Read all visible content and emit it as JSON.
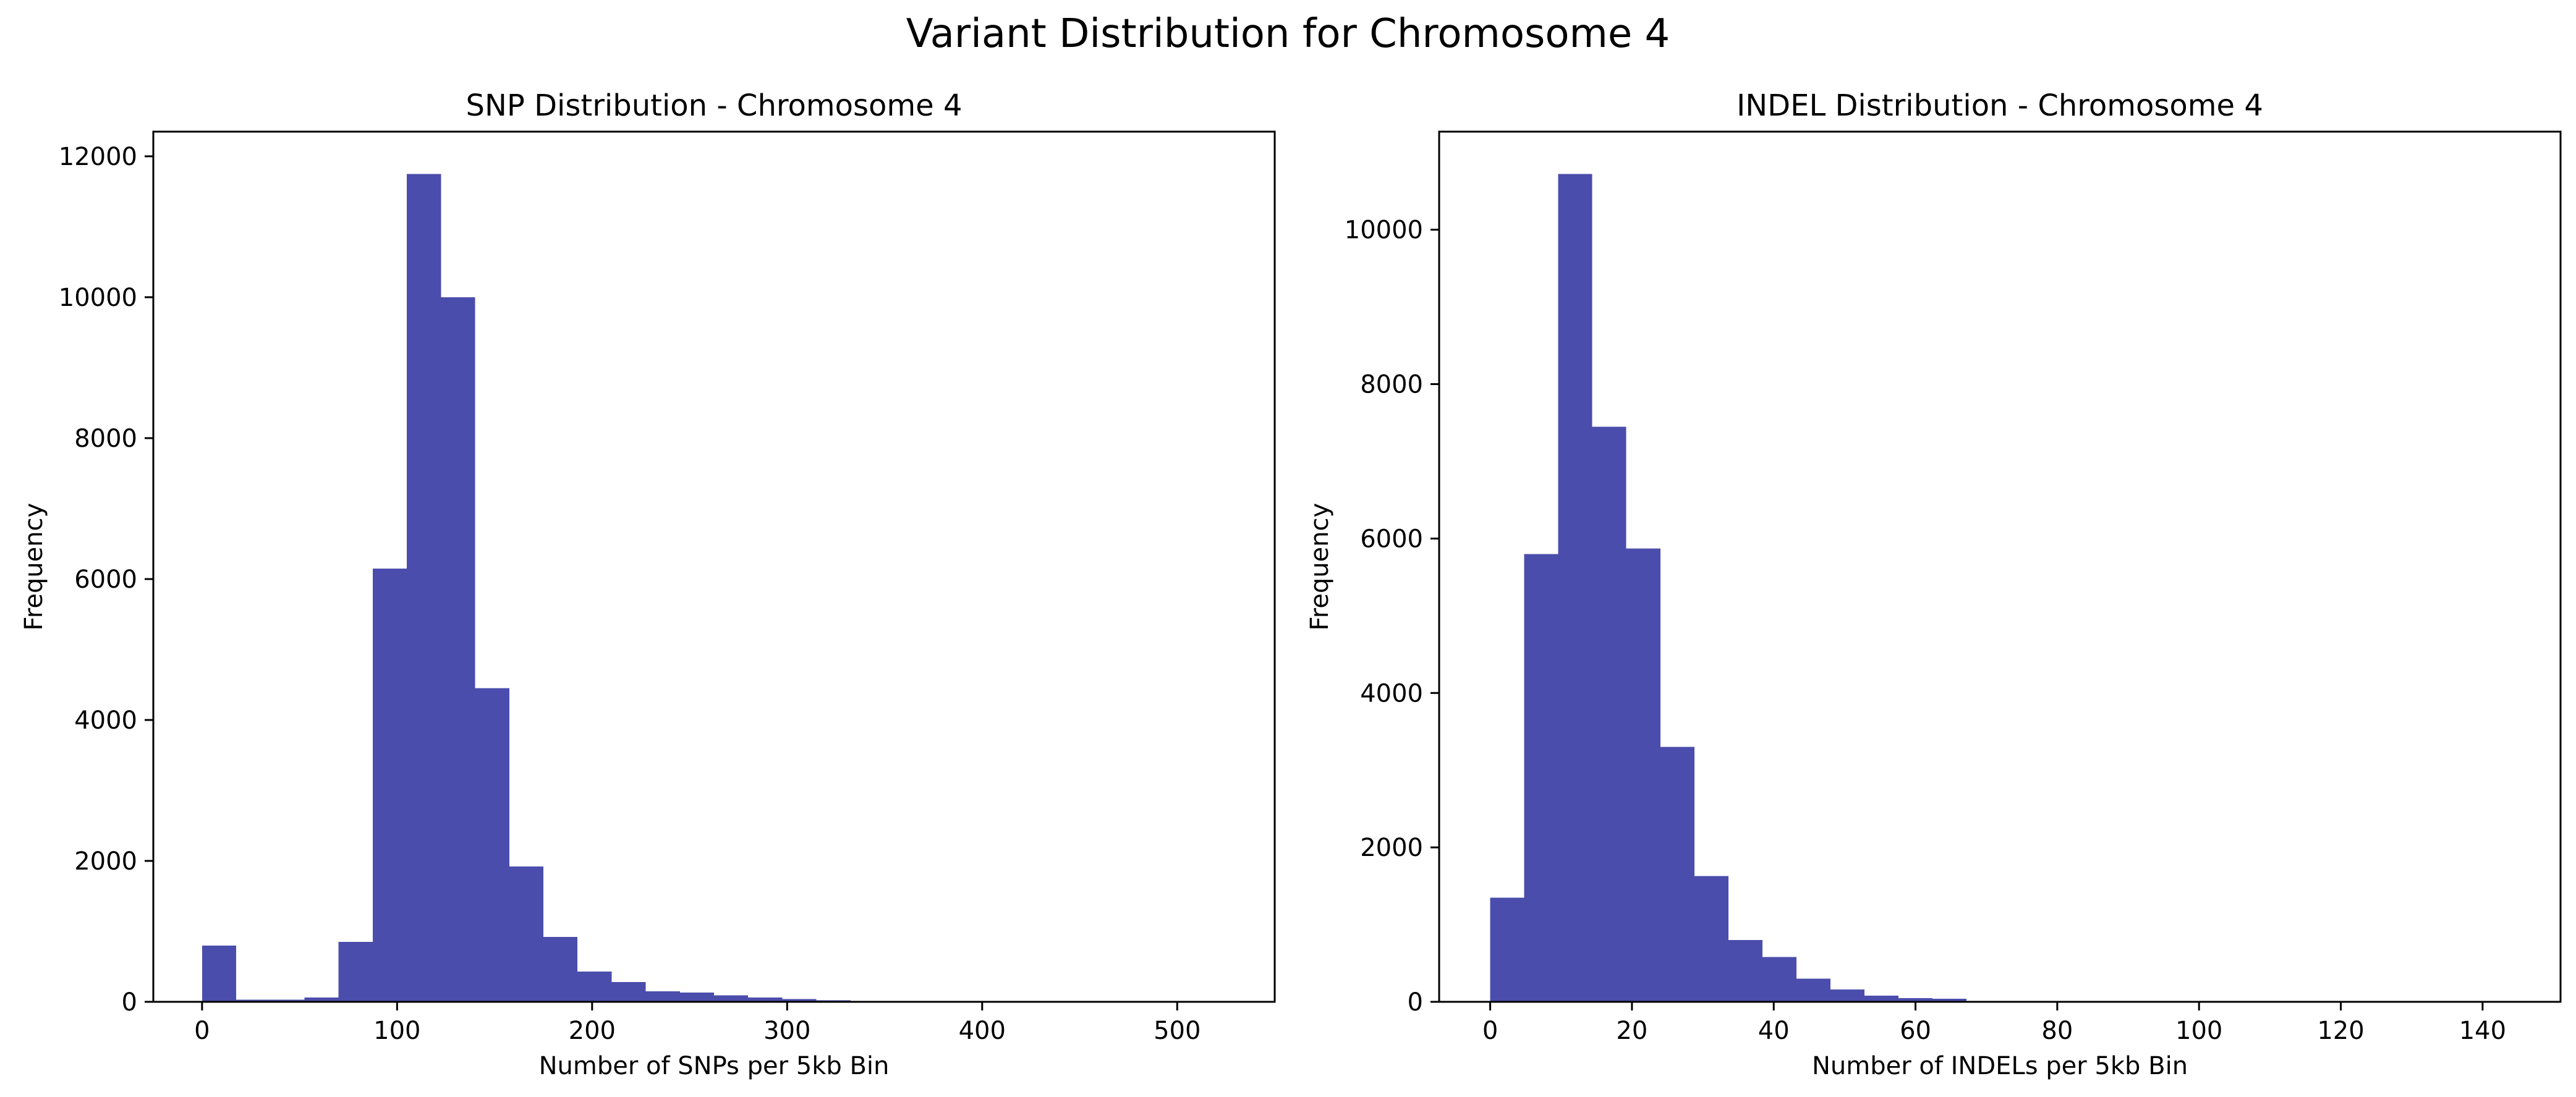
{
  "figure": {
    "title": "Variant Distribution for Chromosome 4"
  },
  "colors": {
    "bar": "#4b4dac",
    "axis": "#000000"
  },
  "chart_data": [
    {
      "type": "bar",
      "title": "SNP Distribution - Chromosome 4",
      "xlabel": "Number of SNPs per 5kb Bin",
      "ylabel": "Frequency",
      "xlim": [
        -25,
        550
      ],
      "ylim": [
        0,
        12350
      ],
      "xticks": [
        0,
        100,
        200,
        300,
        400,
        500
      ],
      "yticks": [
        0,
        2000,
        4000,
        6000,
        8000,
        10000,
        12000
      ],
      "bin_edges": [
        0,
        17.5,
        35,
        52.5,
        70,
        87.5,
        105,
        122.5,
        140,
        157.5,
        175,
        192.5,
        210,
        227.5,
        245,
        262.5,
        280,
        297.5,
        315,
        332.5,
        350,
        367.5,
        385,
        402.5,
        420,
        437.5,
        455,
        472.5,
        490,
        507.5,
        525
      ],
      "values": [
        800,
        30,
        30,
        60,
        850,
        6150,
        11750,
        10000,
        4450,
        1920,
        920,
        430,
        280,
        150,
        130,
        90,
        60,
        40,
        20,
        10,
        15,
        5,
        3,
        2,
        2,
        1,
        1,
        1,
        1,
        1
      ],
      "grid": false,
      "legend": "none"
    },
    {
      "type": "bar",
      "title": "INDEL Distribution - Chromosome 4",
      "xlabel": "Number of INDELs per 5kb Bin",
      "ylabel": "Frequency",
      "xlim": [
        -7.2,
        151
      ],
      "ylim": [
        0,
        11270
      ],
      "xticks": [
        0,
        20,
        40,
        60,
        80,
        100,
        120,
        140
      ],
      "yticks": [
        0,
        2000,
        4000,
        6000,
        8000,
        10000
      ],
      "bin_edges": [
        0,
        4.8,
        9.6,
        14.4,
        19.2,
        24,
        28.8,
        33.6,
        38.4,
        43.2,
        48,
        52.8,
        57.6,
        62.4,
        67.2,
        72,
        76.8,
        81.6,
        86.4,
        91.2,
        96,
        100.8,
        105.6,
        110.4,
        115.2,
        120,
        124.8,
        129.6,
        134.4,
        139.2,
        144
      ],
      "values": [
        1350,
        5800,
        10720,
        7450,
        5870,
        3300,
        1630,
        800,
        580,
        300,
        160,
        80,
        50,
        40,
        10,
        5,
        3,
        2,
        1,
        1,
        1,
        1,
        1,
        1,
        1,
        1,
        1,
        1,
        1,
        1
      ],
      "grid": false,
      "legend": "none"
    }
  ]
}
